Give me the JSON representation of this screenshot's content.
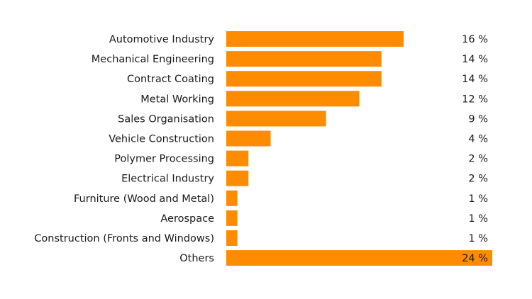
{
  "chart_data": {
    "type": "bar",
    "orientation": "horizontal",
    "categories": [
      "Automotive Industry",
      "Mechanical Engineering",
      "Contract Coating",
      "Metal Working",
      "Sales Organisation",
      "Vehicle Construction",
      "Polymer Processing",
      "Electrical Industry",
      "Furniture (Wood and Metal)",
      "Aerospace",
      "Construction (Fronts and Windows)",
      "Others"
    ],
    "values": [
      16,
      14,
      14,
      12,
      9,
      4,
      2,
      2,
      1,
      1,
      1,
      24
    ],
    "value_labels": [
      "16 %",
      "14 %",
      "14 %",
      "12 %",
      "9 %",
      "4 %",
      "2 %",
      "2 %",
      "1 %",
      "1 %",
      "1 %",
      "24 %"
    ],
    "unit": "%",
    "xlim": [
      0,
      24
    ],
    "grid": false,
    "title": "",
    "xlabel": "",
    "ylabel": "",
    "bar_color": "#FF8C00"
  }
}
